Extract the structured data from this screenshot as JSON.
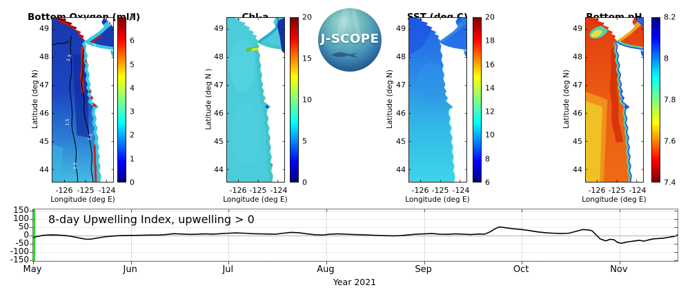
{
  "panels": [
    {
      "title": "Bottom Oxygen (ml/l)",
      "ylabel": "Latitude (deg N)",
      "xlabel": "Longitude (deg E)",
      "contour_label": "1.5",
      "colorbar": {
        "ticks": [
          "7",
          "6",
          "5",
          "4",
          "3",
          "2",
          "1",
          "0"
        ],
        "min": 0,
        "max": 7
      }
    },
    {
      "title": "Chl-a",
      "ylabel": "Latitude (deg N )",
      "xlabel": "Longitude (deg E)",
      "colorbar": {
        "ticks": [
          "20",
          "15",
          "10",
          "5",
          "0"
        ],
        "min": 0,
        "max": 20
      }
    },
    {
      "title": "SST (deg C)",
      "ylabel": "Latitude (deg N)",
      "xlabel": "Longitude (deg E)",
      "colorbar": {
        "ticks": [
          "20",
          "18",
          "16",
          "14",
          "12",
          "10",
          "8",
          "6"
        ],
        "min": 6,
        "max": 20
      }
    },
    {
      "title": "Bottom pH",
      "ylabel": "Latitude (deg N)",
      "xlabel": "Longitude (deg E)",
      "colorbar": {
        "ticks": [
          "8.2",
          "8",
          "7.8",
          "7.6",
          "7.4"
        ],
        "min": 7.4,
        "max": 8.2
      }
    }
  ],
  "axes": {
    "lat_ticks": [
      "49",
      "48",
      "47",
      "46",
      "45",
      "44"
    ],
    "lon_ticks": [
      "-126",
      "-125",
      "-124"
    ]
  },
  "logo": {
    "text": "J-SCOPE"
  },
  "timeseries": {
    "annotation": "8-day Upwelling Index, upwelling > 0",
    "xlabel": "Year 2021",
    "y_ticks": [
      "150",
      "100",
      "50",
      "0",
      "-50",
      "-100",
      "-150"
    ],
    "x_ticks": [
      "May",
      "Jun",
      "Jul",
      "Aug",
      "Sep",
      "Oct",
      "Nov"
    ]
  },
  "chart_data": [
    {
      "type": "heatmap",
      "title": "Bottom Oxygen (ml/l)",
      "xlabel": "Longitude (deg E)",
      "ylabel": "Latitude (deg N)",
      "x_ticks": [
        -126,
        -125,
        -124
      ],
      "y_ticks": [
        49,
        48,
        47,
        46,
        45,
        44
      ],
      "colormap": "jet",
      "colorbar_range": [
        0,
        7
      ],
      "colorbar_ticks": [
        0,
        1,
        2,
        3,
        4,
        5,
        6,
        7
      ],
      "contour_level_mll": 1.5,
      "summary": "Hypoxic blue shelf (<2 ml/l) with 1.5 ml/l contours; high oxygen (red, 5-7) along Vancouver Island, Strait of Juan de Fuca rim and river mouths; cyan nearshore band"
    },
    {
      "type": "heatmap",
      "title": "Chl-a",
      "xlabel": "Longitude (deg E)",
      "ylabel": "Latitude (deg N)",
      "x_ticks": [
        -126,
        -125,
        -124
      ],
      "y_ticks": [
        49,
        48,
        47,
        46,
        45,
        44
      ],
      "colormap": "jet",
      "colorbar_range": [
        0,
        20
      ],
      "colorbar_ticks": [
        0,
        5,
        10,
        15,
        20
      ],
      "summary": "Mostly 4-6 mg/m3 (cyan); strong bloom (15-20, red/yellow) at Strait of Juan de Fuca mouth near 48.3N; very low (dark blue) in Strait of Georgia / NE corner"
    },
    {
      "type": "heatmap",
      "title": "SST (deg C)",
      "xlabel": "Longitude (deg E)",
      "ylabel": "Latitude (deg N)",
      "x_ticks": [
        -126,
        -125,
        -124
      ],
      "y_ticks": [
        49,
        48,
        47,
        46,
        45,
        44
      ],
      "colormap": "jet",
      "colorbar_range": [
        6,
        20
      ],
      "colorbar_ticks": [
        6,
        8,
        10,
        12,
        14,
        16,
        18,
        20
      ],
      "summary": "SST ~9C (blue) in the north grading to ~11C (cyan) in the south"
    },
    {
      "type": "heatmap",
      "title": "Bottom pH",
      "xlabel": "Longitude (deg E)",
      "ylabel": "Latitude (deg N)",
      "x_ticks": [
        -126,
        -125,
        -124
      ],
      "y_ticks": [
        49,
        48,
        47,
        46,
        45,
        44
      ],
      "colormap": "jet-reversed",
      "colorbar_range": [
        7.4,
        8.2
      ],
      "colorbar_ticks": [
        7.4,
        7.6,
        7.8,
        8,
        8.2
      ],
      "summary": "Low pH 7.5-7.6 (red/orange) over shelf, ~7.65 (yellow) offshore south, higher pH 7.8-8.1 (green/cyan/blue) hugging the coast and in straits"
    },
    {
      "type": "line",
      "title": "8-day Upwelling Index, upwelling > 0",
      "xlabel": "Year 2021",
      "x_unit": "months after May 1 2021",
      "ylim": [
        -150,
        150
      ],
      "y_ticks": [
        150,
        100,
        50,
        0,
        -50,
        -100,
        -150
      ],
      "x_tick_labels": [
        "May",
        "Jun",
        "Jul",
        "Aug",
        "Sep",
        "Oct",
        "Nov"
      ],
      "marker_color": "#00dd00",
      "line_color": "#000000",
      "zero_line": "dotted",
      "x": [
        0.0,
        0.04,
        0.09,
        0.14,
        0.2,
        0.26,
        0.32,
        0.38,
        0.44,
        0.5,
        0.55,
        0.6,
        0.66,
        0.72,
        0.8,
        0.88,
        0.96,
        1.04,
        1.12,
        1.2,
        1.28,
        1.36,
        1.44,
        1.52,
        1.6,
        1.68,
        1.76,
        1.84,
        1.92,
        2.0,
        2.08,
        2.16,
        2.24,
        2.32,
        2.4,
        2.48,
        2.56,
        2.64,
        2.72,
        2.8,
        2.88,
        2.96,
        3.04,
        3.12,
        3.2,
        3.28,
        3.36,
        3.44,
        3.52,
        3.6,
        3.68,
        3.76,
        3.84,
        3.92,
        4.0,
        4.08,
        4.16,
        4.24,
        4.32,
        4.4,
        4.48,
        4.56,
        4.62,
        4.68,
        4.73,
        4.77,
        4.82,
        4.9,
        5.0,
        5.08,
        5.16,
        5.24,
        5.32,
        5.4,
        5.48,
        5.56,
        5.62,
        5.68,
        5.72,
        5.76,
        5.8,
        5.86,
        5.9,
        5.94,
        5.98,
        6.02,
        6.06,
        6.1,
        6.15,
        6.2,
        6.25,
        6.3,
        6.35,
        6.4,
        6.45,
        6.5,
        6.55,
        6.58,
        6.6
      ],
      "y": [
        -15,
        -8,
        -2,
        1,
        2,
        1,
        -2,
        -6,
        -13,
        -20,
        -25,
        -23,
        -17,
        -11,
        -6,
        -3,
        -2,
        -1,
        0,
        1,
        1,
        4,
        9,
        7,
        5,
        6,
        8,
        6,
        9,
        12,
        14,
        12,
        9,
        8,
        7,
        6,
        12,
        17,
        15,
        8,
        3,
        1,
        6,
        8,
        6,
        4,
        3,
        1,
        -1,
        -3,
        -4,
        -3,
        2,
        6,
        8,
        10,
        6,
        5,
        8,
        6,
        4,
        7,
        6,
        22,
        40,
        50,
        46,
        40,
        34,
        28,
        20,
        15,
        12,
        10,
        12,
        24,
        34,
        32,
        26,
        2,
        -22,
        -35,
        -25,
        -27,
        -44,
        -49,
        -43,
        -39,
        -35,
        -31,
        -36,
        -28,
        -22,
        -20,
        -18,
        -13,
        -8,
        -4,
        6
      ]
    }
  ]
}
